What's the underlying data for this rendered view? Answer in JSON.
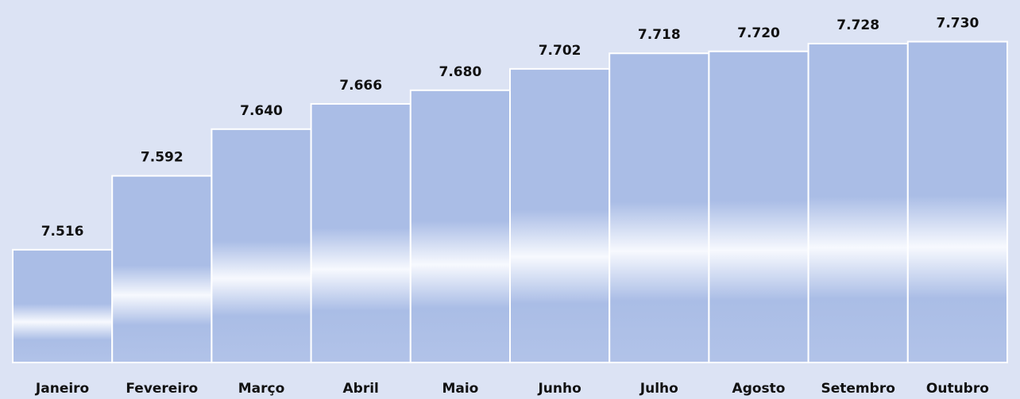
{
  "chart_data": {
    "type": "bar",
    "categories": [
      "Janeiro",
      "Fevereiro",
      "Março",
      "Abril",
      "Maio",
      "Junho",
      "Julho",
      "Agosto",
      "Setembro",
      "Outubro"
    ],
    "values": [
      7516,
      7592,
      7640,
      7666,
      7680,
      7702,
      7718,
      7720,
      7728,
      7730
    ],
    "value_labels": [
      "7.516",
      "7.592",
      "7.640",
      "7.666",
      "7.680",
      "7.702",
      "7.718",
      "7.720",
      "7.728",
      "7.730"
    ],
    "color": "#aabde6",
    "ylim": [
      7400,
      7750
    ]
  }
}
